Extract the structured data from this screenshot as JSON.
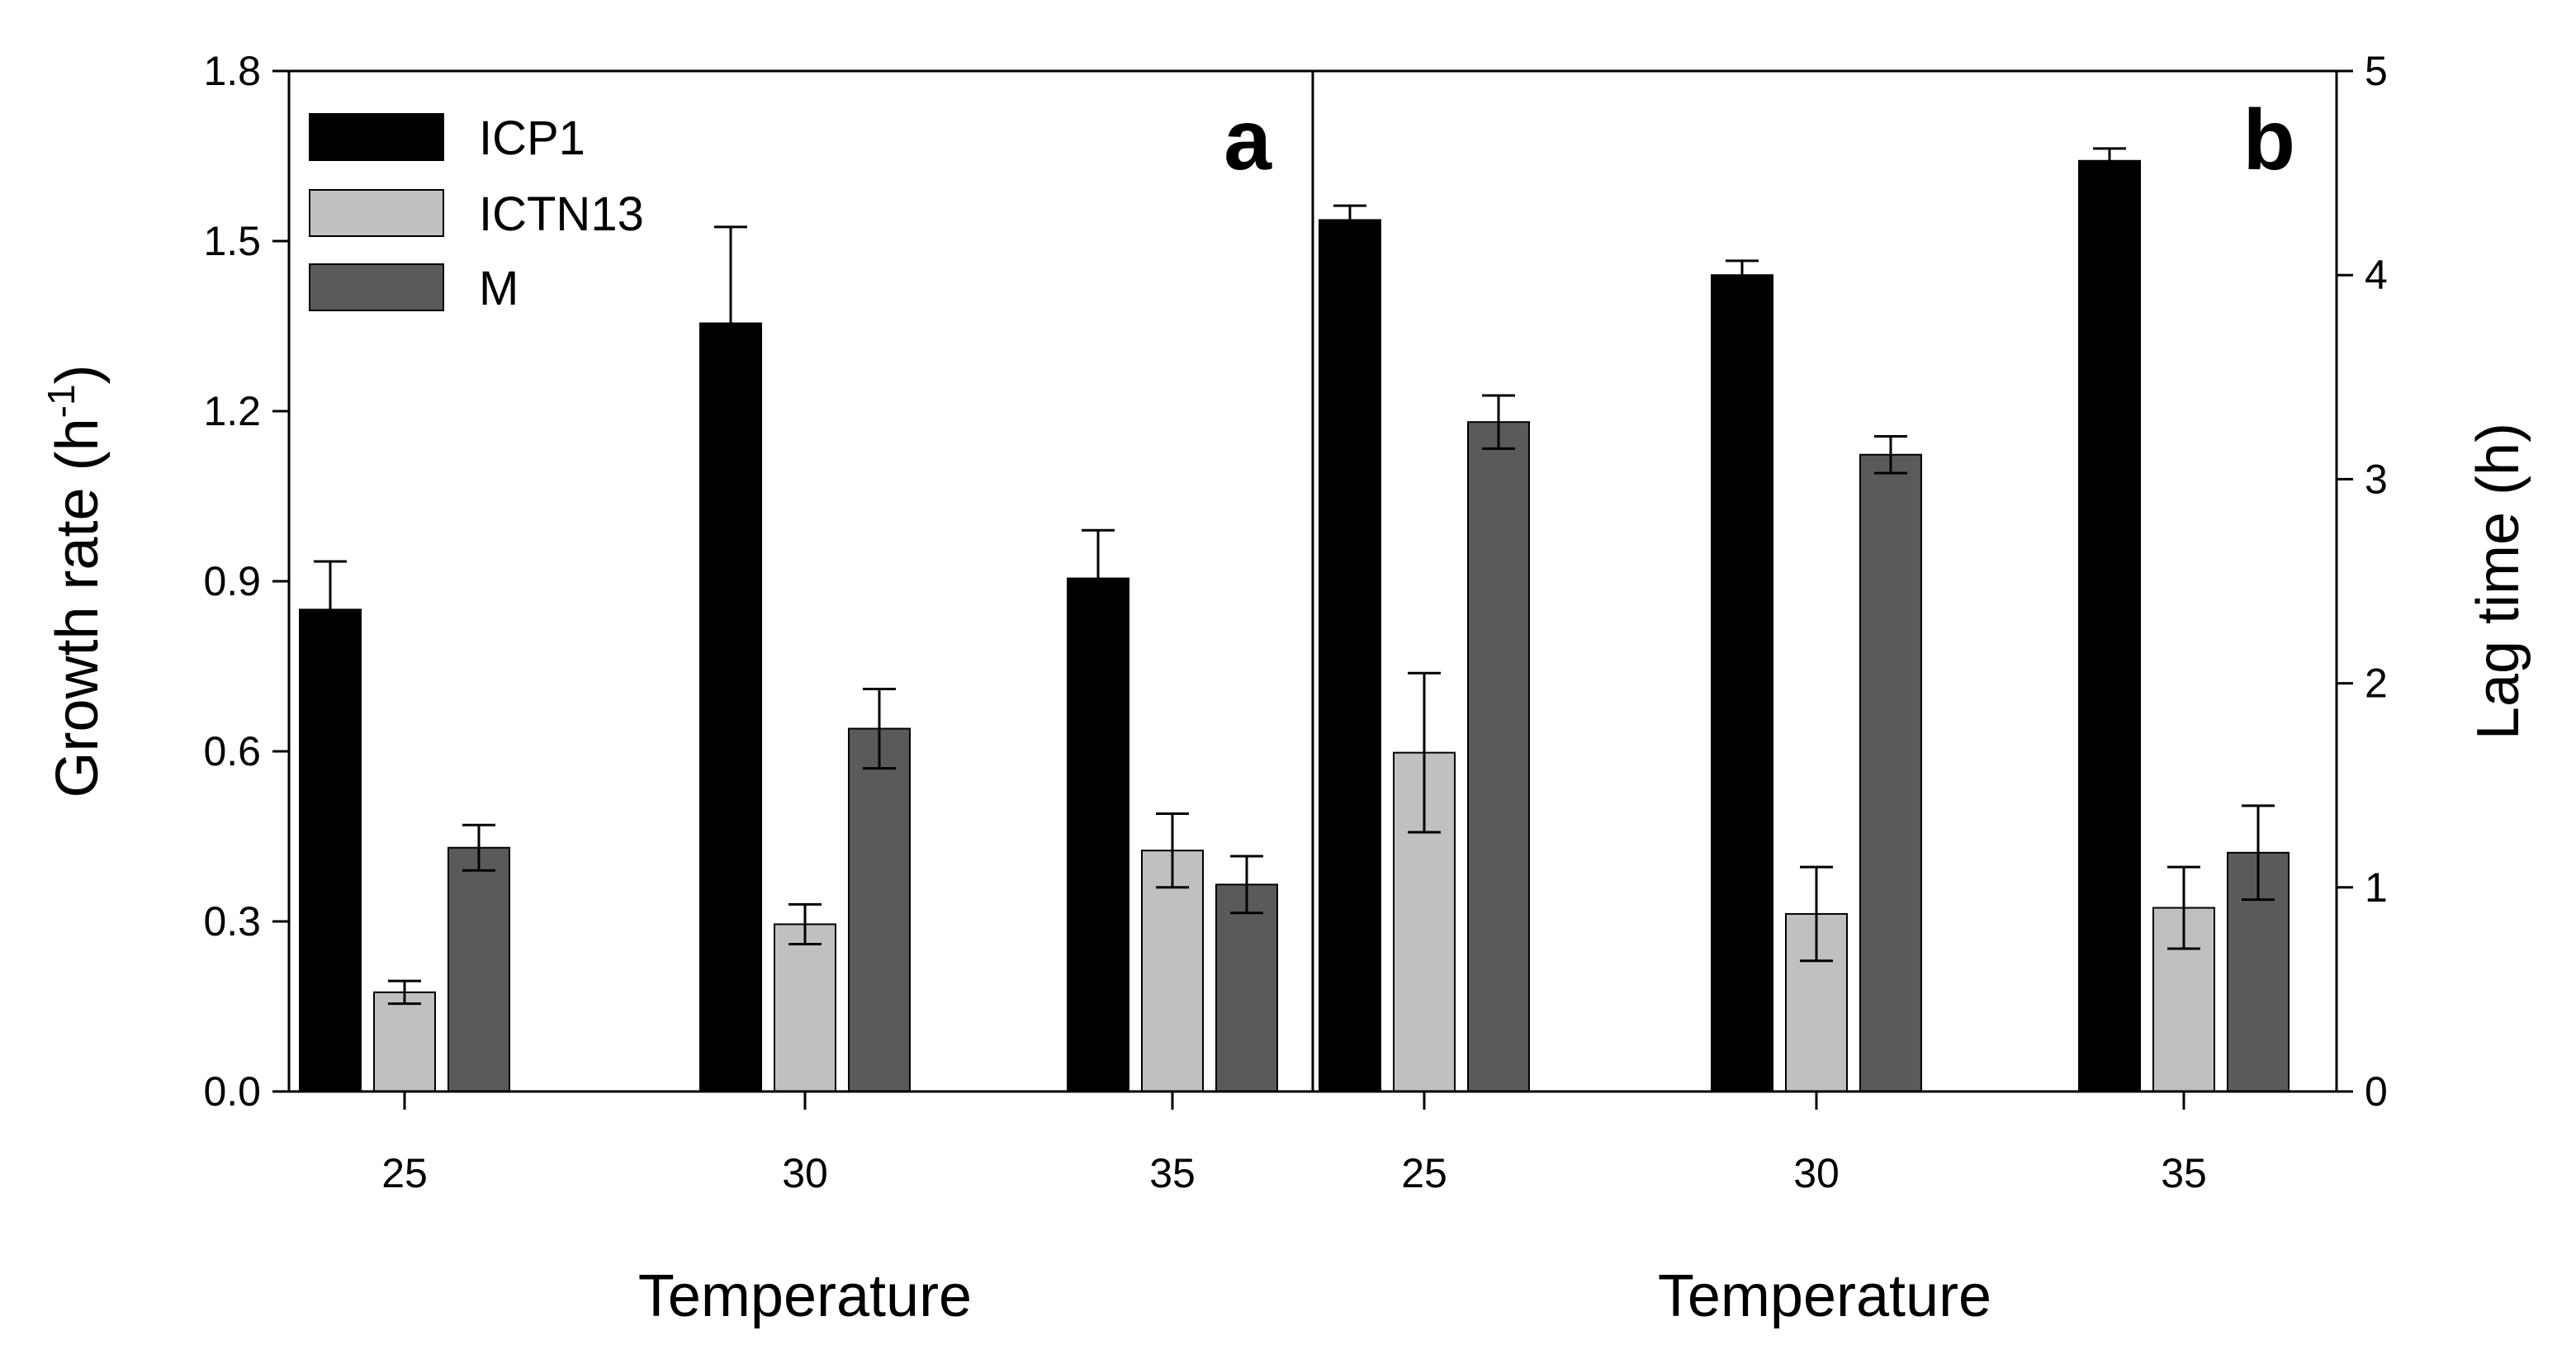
{
  "chart_data": [
    {
      "type": "bar",
      "panel": "a",
      "categories": [
        "25",
        "30",
        "35"
      ],
      "series": [
        {
          "name": "ICP1",
          "color": "#000000",
          "values": [
            0.85,
            1.355,
            0.905
          ],
          "errors": [
            0.085,
            0.17,
            0.085
          ]
        },
        {
          "name": "ICTN13",
          "color": "#c0c0c0",
          "values": [
            0.175,
            0.295,
            0.425
          ],
          "errors": [
            0.02,
            0.035,
            0.065
          ]
        },
        {
          "name": "M",
          "color": "#5a5a5a",
          "values": [
            0.43,
            0.64,
            0.365
          ],
          "errors": [
            0.04,
            0.07,
            0.05
          ]
        }
      ],
      "ylabel": "Growth rate (h",
      "ylabel_sup": "-1",
      "ylabel_close": ")",
      "xlabel": "Temperature",
      "ylim": [
        0,
        1.8
      ],
      "yticks": [
        "0.0",
        "0.3",
        "0.6",
        "0.9",
        "1.2",
        "1.5",
        "1.8"
      ],
      "legend_placement": "top-left"
    },
    {
      "type": "bar",
      "panel": "b",
      "categories": [
        "25",
        "30",
        "35"
      ],
      "series": [
        {
          "name": "ICP1",
          "color": "#000000",
          "values": [
            4.27,
            4.0,
            4.56
          ],
          "errors": [
            0.07,
            0.07,
            0.06
          ]
        },
        {
          "name": "ICTN13",
          "color": "#c0c0c0",
          "values": [
            1.66,
            0.87,
            0.9
          ],
          "errors": [
            0.39,
            0.23,
            0.2
          ]
        },
        {
          "name": "M",
          "color": "#5a5a5a",
          "values": [
            3.28,
            3.12,
            1.17
          ],
          "errors": [
            0.13,
            0.09,
            0.23
          ]
        }
      ],
      "ylabel": "Lag time (h)",
      "xlabel": "Temperature",
      "ylim": [
        0,
        5
      ],
      "yticks": [
        "0",
        "1",
        "2",
        "3",
        "4",
        "5"
      ]
    }
  ]
}
